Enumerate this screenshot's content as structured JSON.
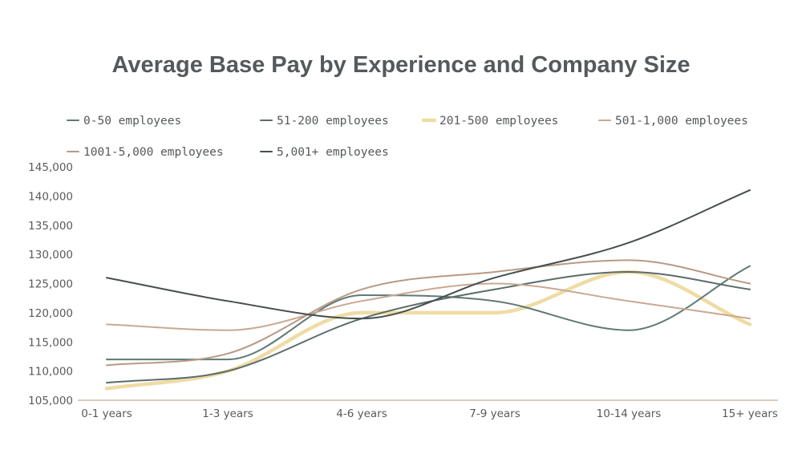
{
  "chart_data": {
    "type": "line",
    "title": "Average Base Pay by Experience and Company Size",
    "xlabel": "",
    "ylabel": "",
    "categories": [
      "0-1 years",
      "1-3 years",
      "4-6 years",
      "7-9 years",
      "10-14 years",
      "15+ years"
    ],
    "y_ticks": [
      "105,000",
      "110,000",
      "115,000",
      "120,000",
      "125,000",
      "130,000",
      "135,000",
      "140,000",
      "145,000"
    ],
    "ylim": [
      105000,
      145000
    ],
    "grid": false,
    "legend_position": "top",
    "series": [
      {
        "name": "0-50 employees",
        "color": "#5f7a74",
        "values": [
          112000,
          112000,
          123000,
          122000,
          117000,
          128000
        ]
      },
      {
        "name": "51-200 employees",
        "color": "#5a6c6b",
        "values": [
          108000,
          110000,
          119000,
          124000,
          127000,
          124000
        ]
      },
      {
        "name": "201-500 employees",
        "color": "#efdca4",
        "values": [
          107000,
          110000,
          120000,
          120000,
          127000,
          118000
        ]
      },
      {
        "name": "501-1,000 employees",
        "color": "#c9a892",
        "values": [
          118000,
          117000,
          122000,
          125000,
          122000,
          119000
        ]
      },
      {
        "name": "1001-5,000 employees",
        "color": "#b89a84",
        "values": [
          111000,
          113000,
          124000,
          127000,
          129000,
          125000
        ]
      },
      {
        "name": "5,001+ employees",
        "color": "#464f4d",
        "values": [
          126000,
          122000,
          119000,
          126000,
          132000,
          141000
        ]
      }
    ]
  }
}
